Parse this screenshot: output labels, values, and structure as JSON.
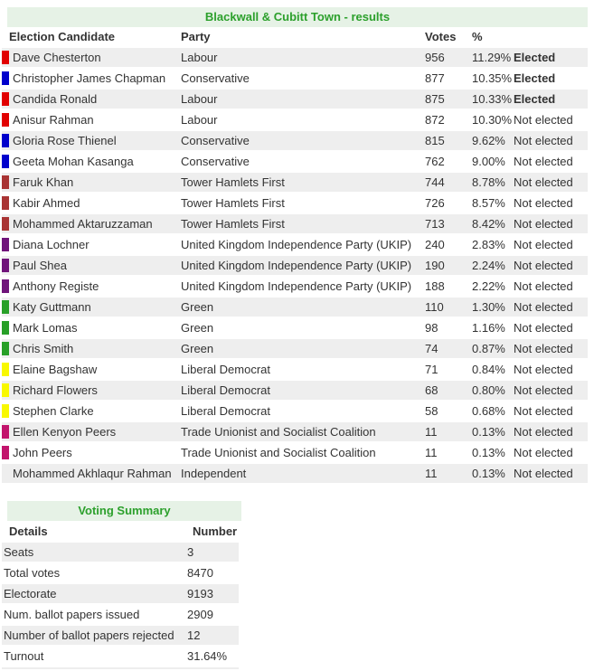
{
  "colors": {
    "title_bg": "#E6F2E6",
    "title_text": "#2CA02C",
    "row_alt_bg": "#EEEEEE",
    "text": "#333333"
  },
  "party_colors": {
    "labour": "#E10000",
    "conservative": "#0000CC",
    "tower_hamlets_first": "#A93434",
    "ukip": "#70147A",
    "green": "#28A028",
    "liberal_democrat": "#F8F800",
    "tusc": "#C2146C",
    "independent": null
  },
  "results": {
    "title": "Blackwall & Cubitt Town - results",
    "headers": {
      "candidate": "Election Candidate",
      "party": "Party",
      "votes": "Votes",
      "percent": "%"
    },
    "rows": [
      {
        "name": "Dave Chesterton",
        "party": "Labour",
        "party_color": "labour",
        "votes": "956",
        "percent": "11.29%",
        "status": "Elected",
        "elected": true
      },
      {
        "name": "Christopher James Chapman",
        "party": "Conservative",
        "party_color": "conservative",
        "votes": "877",
        "percent": "10.35%",
        "status": "Elected",
        "elected": true
      },
      {
        "name": "Candida Ronald",
        "party": "Labour",
        "party_color": "labour",
        "votes": "875",
        "percent": "10.33%",
        "status": "Elected",
        "elected": true
      },
      {
        "name": "Anisur Rahman",
        "party": "Labour",
        "party_color": "labour",
        "votes": "872",
        "percent": "10.30%",
        "status": "Not elected",
        "elected": false
      },
      {
        "name": "Gloria Rose Thienel",
        "party": "Conservative",
        "party_color": "conservative",
        "votes": "815",
        "percent": "9.62%",
        "status": "Not elected",
        "elected": false
      },
      {
        "name": "Geeta Mohan Kasanga",
        "party": "Conservative",
        "party_color": "conservative",
        "votes": "762",
        "percent": "9.00%",
        "status": "Not elected",
        "elected": false
      },
      {
        "name": "Faruk Khan",
        "party": "Tower Hamlets First",
        "party_color": "tower_hamlets_first",
        "votes": "744",
        "percent": "8.78%",
        "status": "Not elected",
        "elected": false
      },
      {
        "name": "Kabir Ahmed",
        "party": "Tower Hamlets First",
        "party_color": "tower_hamlets_first",
        "votes": "726",
        "percent": "8.57%",
        "status": "Not elected",
        "elected": false
      },
      {
        "name": "Mohammed Aktaruzzaman",
        "party": "Tower Hamlets First",
        "party_color": "tower_hamlets_first",
        "votes": "713",
        "percent": "8.42%",
        "status": "Not elected",
        "elected": false
      },
      {
        "name": "Diana Lochner",
        "party": "United Kingdom Independence Party (UKIP)",
        "party_color": "ukip",
        "votes": "240",
        "percent": "2.83%",
        "status": "Not elected",
        "elected": false
      },
      {
        "name": "Paul Shea",
        "party": "United Kingdom Independence Party (UKIP)",
        "party_color": "ukip",
        "votes": "190",
        "percent": "2.24%",
        "status": "Not elected",
        "elected": false
      },
      {
        "name": "Anthony Registe",
        "party": "United Kingdom Independence Party (UKIP)",
        "party_color": "ukip",
        "votes": "188",
        "percent": "2.22%",
        "status": "Not elected",
        "elected": false
      },
      {
        "name": "Katy Guttmann",
        "party": "Green",
        "party_color": "green",
        "votes": "110",
        "percent": "1.30%",
        "status": "Not elected",
        "elected": false
      },
      {
        "name": "Mark Lomas",
        "party": "Green",
        "party_color": "green",
        "votes": "98",
        "percent": "1.16%",
        "status": "Not elected",
        "elected": false
      },
      {
        "name": "Chris Smith",
        "party": "Green",
        "party_color": "green",
        "votes": "74",
        "percent": "0.87%",
        "status": "Not elected",
        "elected": false
      },
      {
        "name": "Elaine Bagshaw",
        "party": "Liberal Democrat",
        "party_color": "liberal_democrat",
        "votes": "71",
        "percent": "0.84%",
        "status": "Not elected",
        "elected": false
      },
      {
        "name": "Richard Flowers",
        "party": "Liberal Democrat",
        "party_color": "liberal_democrat",
        "votes": "68",
        "percent": "0.80%",
        "status": "Not elected",
        "elected": false
      },
      {
        "name": "Stephen Clarke",
        "party": "Liberal Democrat",
        "party_color": "liberal_democrat",
        "votes": "58",
        "percent": "0.68%",
        "status": "Not elected",
        "elected": false
      },
      {
        "name": "Ellen Kenyon Peers",
        "party": "Trade Unionist and Socialist Coalition",
        "party_color": "tusc",
        "votes": "11",
        "percent": "0.13%",
        "status": "Not elected",
        "elected": false
      },
      {
        "name": "John Peers",
        "party": "Trade Unionist and Socialist Coalition",
        "party_color": "tusc",
        "votes": "11",
        "percent": "0.13%",
        "status": "Not elected",
        "elected": false
      },
      {
        "name": "Mohammed Akhlaqur Rahman",
        "party": "Independent",
        "party_color": "independent",
        "votes": "11",
        "percent": "0.13%",
        "status": "Not elected",
        "elected": false
      }
    ]
  },
  "summary": {
    "title": "Voting Summary",
    "headers": {
      "details": "Details",
      "number": "Number"
    },
    "rows": [
      {
        "label": "Seats",
        "value": "3"
      },
      {
        "label": "Total votes",
        "value": "8470"
      },
      {
        "label": "Electorate",
        "value": "9193"
      },
      {
        "label": "Num. ballot papers issued",
        "value": "2909"
      },
      {
        "label": "Number of ballot papers rejected",
        "value": "12"
      },
      {
        "label": "Turnout",
        "value": "31.64%"
      }
    ]
  }
}
